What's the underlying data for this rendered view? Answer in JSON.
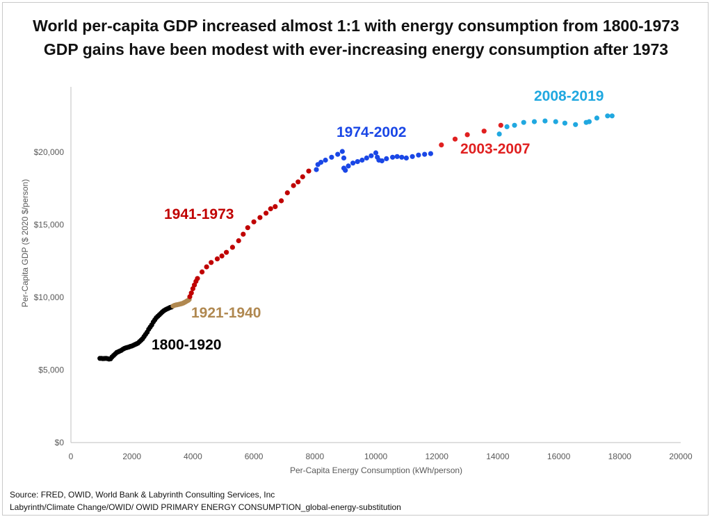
{
  "title_line1": "World per-capita GDP increased almost 1:1 with energy consumption from 1800-1973",
  "title_line2": "GDP gains have been modest with ever-increasing energy consumption after 1973",
  "source_line1": "Source:  FRED, OWID, World Bank & Labyrinth Consulting Services, Inc",
  "source_line2": "Labyrinth/Climate Change/OWID/ OWID PRIMARY ENERGY CONSUMPTION_global-energy-substitution",
  "chart_data": {
    "type": "scatter",
    "xlabel": "Per-Capita Energy Consumption (kWh/person)",
    "ylabel": "Per-Capita GDP ($ 2020 $/person)",
    "xlim": [
      0,
      20000
    ],
    "ylim": [
      0,
      24000
    ],
    "xticks": [
      0,
      2000,
      4000,
      6000,
      8000,
      10000,
      12000,
      14000,
      16000,
      18000,
      20000
    ],
    "xtick_labels": [
      "0",
      "2000",
      "4000",
      "6000",
      "8000",
      "10000",
      "12000",
      "14000",
      "16000",
      "18000",
      "20000"
    ],
    "yticks": [
      0,
      5000,
      10000,
      15000,
      20000
    ],
    "ytick_labels": [
      "$0",
      "$5,000",
      "$10,000",
      "$15,000",
      "$20,000"
    ],
    "grid": false,
    "legend": "none",
    "series": [
      {
        "name": "1800-1920",
        "label": "1800-1920",
        "color": "#000000",
        "points": [
          [
            950,
            5800
          ],
          [
            1000,
            5800
          ],
          [
            1050,
            5780
          ],
          [
            1100,
            5790
          ],
          [
            1150,
            5800
          ],
          [
            1200,
            5780
          ],
          [
            1250,
            5750
          ],
          [
            1300,
            5770
          ],
          [
            1350,
            5900
          ],
          [
            1400,
            6000
          ],
          [
            1450,
            6100
          ],
          [
            1500,
            6200
          ],
          [
            1550,
            6250
          ],
          [
            1600,
            6300
          ],
          [
            1650,
            6350
          ],
          [
            1700,
            6420
          ],
          [
            1750,
            6480
          ],
          [
            1800,
            6520
          ],
          [
            1850,
            6550
          ],
          [
            1900,
            6580
          ],
          [
            1950,
            6620
          ],
          [
            2000,
            6650
          ],
          [
            2050,
            6700
          ],
          [
            2100,
            6750
          ],
          [
            2150,
            6800
          ],
          [
            2200,
            6850
          ],
          [
            2250,
            6950
          ],
          [
            2300,
            7050
          ],
          [
            2350,
            7150
          ],
          [
            2400,
            7300
          ],
          [
            2450,
            7450
          ],
          [
            2500,
            7600
          ],
          [
            2550,
            7800
          ],
          [
            2600,
            7950
          ],
          [
            2650,
            8100
          ],
          [
            2700,
            8300
          ],
          [
            2750,
            8450
          ],
          [
            2800,
            8600
          ],
          [
            2850,
            8700
          ],
          [
            2900,
            8800
          ],
          [
            2950,
            8900
          ],
          [
            3000,
            9000
          ],
          [
            3050,
            9080
          ],
          [
            3100,
            9150
          ],
          [
            3150,
            9200
          ],
          [
            3200,
            9250
          ],
          [
            3250,
            9300
          ],
          [
            3300,
            9330
          ]
        ]
      },
      {
        "name": "1921-1940",
        "label": "1921-1940",
        "color": "#b08850",
        "points": [
          [
            3350,
            9400
          ],
          [
            3400,
            9450
          ],
          [
            3450,
            9480
          ],
          [
            3500,
            9500
          ],
          [
            3550,
            9520
          ],
          [
            3600,
            9550
          ],
          [
            3650,
            9580
          ],
          [
            3700,
            9620
          ],
          [
            3750,
            9680
          ],
          [
            3800,
            9740
          ],
          [
            3850,
            9800
          ],
          [
            3880,
            9860
          ]
        ]
      },
      {
        "name": "1941-1973",
        "label": "1941-1973",
        "color": "#c00000",
        "points": [
          [
            3900,
            10050
          ],
          [
            3950,
            10300
          ],
          [
            4000,
            10600
          ],
          [
            4050,
            10850
          ],
          [
            4100,
            11100
          ],
          [
            4150,
            11300
          ],
          [
            4300,
            11750
          ],
          [
            4450,
            12100
          ],
          [
            4600,
            12400
          ],
          [
            4800,
            12650
          ],
          [
            4950,
            12850
          ],
          [
            5100,
            13100
          ],
          [
            5300,
            13450
          ],
          [
            5500,
            13900
          ],
          [
            5650,
            14350
          ],
          [
            5800,
            14800
          ],
          [
            6000,
            15200
          ],
          [
            6200,
            15500
          ],
          [
            6400,
            15800
          ],
          [
            6550,
            16100
          ],
          [
            6700,
            16250
          ],
          [
            6900,
            16650
          ],
          [
            7100,
            17200
          ],
          [
            7300,
            17700
          ],
          [
            7450,
            17950
          ],
          [
            7600,
            18300
          ],
          [
            7800,
            18700
          ]
        ]
      },
      {
        "name": "1974-2002",
        "label": "1974-2002",
        "color": "#1a47e6",
        "points": [
          [
            8050,
            18800
          ],
          [
            8100,
            19150
          ],
          [
            8200,
            19300
          ],
          [
            8350,
            19450
          ],
          [
            8550,
            19650
          ],
          [
            8750,
            19850
          ],
          [
            8900,
            20050
          ],
          [
            8950,
            19600
          ],
          [
            8950,
            18900
          ],
          [
            9000,
            18750
          ],
          [
            9100,
            19050
          ],
          [
            9250,
            19250
          ],
          [
            9400,
            19350
          ],
          [
            9550,
            19450
          ],
          [
            9700,
            19600
          ],
          [
            9850,
            19750
          ],
          [
            10000,
            19950
          ],
          [
            10050,
            19650
          ],
          [
            10100,
            19450
          ],
          [
            10200,
            19400
          ],
          [
            10350,
            19550
          ],
          [
            10550,
            19650
          ],
          [
            10700,
            19700
          ],
          [
            10850,
            19650
          ],
          [
            11000,
            19600
          ],
          [
            11200,
            19700
          ],
          [
            11400,
            19800
          ],
          [
            11600,
            19850
          ],
          [
            11800,
            19900
          ]
        ]
      },
      {
        "name": "2003-2007",
        "label": "2003-2007",
        "color": "#e02020",
        "points": [
          [
            12150,
            20500
          ],
          [
            12600,
            20900
          ],
          [
            13000,
            21200
          ],
          [
            13550,
            21450
          ],
          [
            14100,
            21850
          ]
        ]
      },
      {
        "name": "2008-2019",
        "label": "2008-2019",
        "color": "#20a8e0",
        "points": [
          [
            14050,
            21250
          ],
          [
            14300,
            21750
          ],
          [
            14550,
            21850
          ],
          [
            14850,
            22050
          ],
          [
            15200,
            22100
          ],
          [
            15550,
            22150
          ],
          [
            15900,
            22100
          ],
          [
            16200,
            22000
          ],
          [
            16550,
            21900
          ],
          [
            16900,
            22050
          ],
          [
            17000,
            22100
          ],
          [
            17250,
            22350
          ],
          [
            17600,
            22500
          ],
          [
            17750,
            22500
          ]
        ]
      }
    ]
  }
}
